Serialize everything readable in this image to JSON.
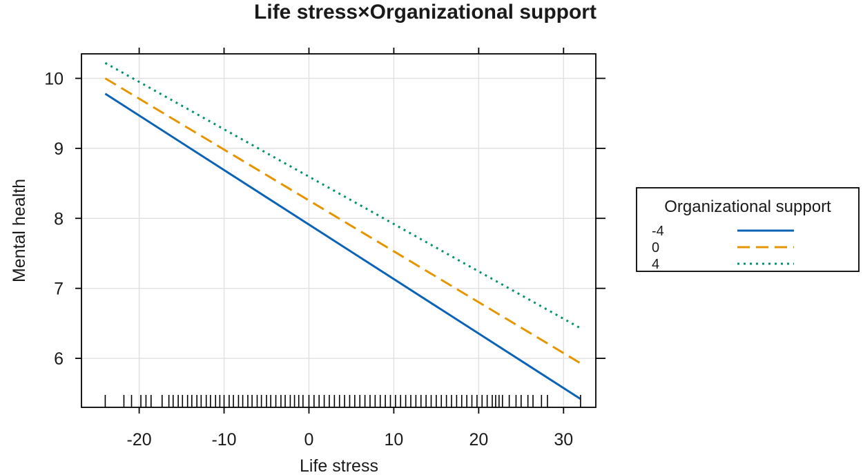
{
  "chart_data": {
    "type": "line",
    "title": "Life stress×Organizational support",
    "xlabel": "Life stress",
    "ylabel": "Mental health",
    "xlim": [
      -26.8,
      33.8
    ],
    "ylim": [
      5.3,
      10.35
    ],
    "xticks": [
      -20,
      -10,
      0,
      10,
      20,
      30
    ],
    "xtick_labels": [
      "-20",
      "-10",
      "0",
      "10",
      "20",
      "30"
    ],
    "yticks": [
      6,
      7,
      8,
      9,
      10
    ],
    "ytick_labels": [
      "6",
      "7",
      "8",
      "9",
      "10"
    ],
    "grid": true,
    "legend": {
      "title": "Organizational support",
      "position": "right"
    },
    "series": [
      {
        "name": "-4",
        "color": "#0b63b6",
        "style": "solid",
        "x": [
          -24,
          32
        ],
        "y": [
          9.78,
          5.42
        ]
      },
      {
        "name": "0",
        "color": "#e69500",
        "style": "dashed",
        "x": [
          -24,
          32
        ],
        "y": [
          10.0,
          5.93
        ]
      },
      {
        "name": "4",
        "color": "#00936e",
        "style": "dotted",
        "x": [
          -24,
          32
        ],
        "y": [
          10.22,
          6.43
        ]
      }
    ],
    "rug_x": [
      -24,
      -21.8,
      -20.9,
      -19.8,
      -19.2,
      -18.6,
      -17.3,
      -16.5,
      -16.0,
      -15.4,
      -14.9,
      -14.3,
      -13.8,
      -13.2,
      -12.7,
      -12.1,
      -11.6,
      -11.0,
      -10.5,
      -10.0,
      -9.4,
      -8.9,
      -8.3,
      -7.8,
      -7.2,
      -6.7,
      -6.1,
      -5.6,
      -5.0,
      -4.5,
      -3.9,
      -3.3,
      -2.8,
      -2.2,
      -1.7,
      -1.2,
      -0.7,
      0.0,
      0.6,
      1.2,
      1.8,
      2.4,
      3.0,
      3.6,
      4.2,
      4.8,
      5.4,
      6.0,
      6.6,
      7.2,
      7.8,
      8.4,
      9.0,
      9.6,
      10.2,
      10.8,
      11.4,
      12.0,
      12.6,
      13.2,
      13.8,
      14.4,
      15.0,
      15.6,
      16.2,
      16.8,
      17.4,
      18.0,
      18.6,
      19.2,
      19.8,
      20.4,
      21.0,
      21.6,
      22.0,
      22.4,
      22.8,
      23.6,
      24.4,
      25.0,
      25.8,
      26.4,
      27.4,
      28.1,
      32.0
    ]
  }
}
